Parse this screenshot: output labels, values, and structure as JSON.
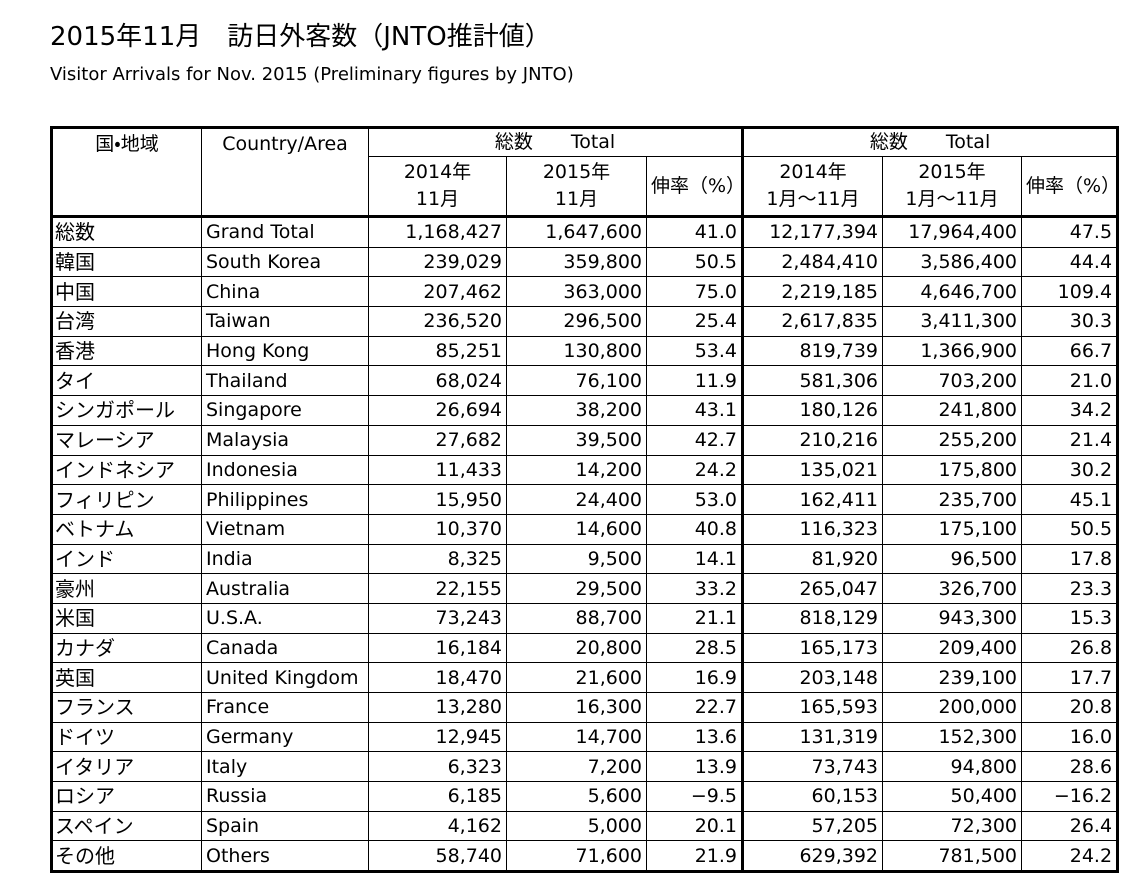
{
  "header": {
    "title": "2015年11月　訪日外客数（JNTO推計値）",
    "subtitle": "Visitor Arrivals for Nov. 2015 (Preliminary figures by JNTO)"
  },
  "table": {
    "header": {
      "region_jp": "国・地域",
      "region_en": "Country/Area",
      "groups": [
        "総数　　Total",
        "総数　　Total"
      ],
      "columns": [
        [
          "2014年",
          "11月"
        ],
        [
          "2015年",
          "11月"
        ],
        [
          "伸率（%）"
        ],
        [
          "2014年",
          "1月～11月"
        ],
        [
          "2015年",
          "1月～11月"
        ],
        [
          "伸率（%）"
        ]
      ]
    },
    "rows": [
      [
        "総数",
        "Grand Total",
        "1,168,427",
        "1,647,600",
        "41.0",
        "12,177,394",
        "17,964,400",
        "47.5"
      ],
      [
        "韓国",
        "South Korea",
        "239,029",
        "359,800",
        "50.5",
        "2,484,410",
        "3,586,400",
        "44.4"
      ],
      [
        "中国",
        "China",
        "207,462",
        "363,000",
        "75.0",
        "2,219,185",
        "4,646,700",
        "109.4"
      ],
      [
        "台湾",
        "Taiwan",
        "236,520",
        "296,500",
        "25.4",
        "2,617,835",
        "3,411,300",
        "30.3"
      ],
      [
        "香港",
        "Hong Kong",
        "85,251",
        "130,800",
        "53.4",
        "819,739",
        "1,366,900",
        "66.7"
      ],
      [
        "タイ",
        "Thailand",
        "68,024",
        "76,100",
        "11.9",
        "581,306",
        "703,200",
        "21.0"
      ],
      [
        "シンガポール",
        "Singapore",
        "26,694",
        "38,200",
        "43.1",
        "180,126",
        "241,800",
        "34.2"
      ],
      [
        "マレーシア",
        "Malaysia",
        "27,682",
        "39,500",
        "42.7",
        "210,216",
        "255,200",
        "21.4"
      ],
      [
        "インドネシア",
        "Indonesia",
        "11,433",
        "14,200",
        "24.2",
        "135,021",
        "175,800",
        "30.2"
      ],
      [
        "フィリピン",
        "Philippines",
        "15,950",
        "24,400",
        "53.0",
        "162,411",
        "235,700",
        "45.1"
      ],
      [
        "ベトナム",
        "Vietnam",
        "10,370",
        "14,600",
        "40.8",
        "116,323",
        "175,100",
        "50.5"
      ],
      [
        "インド",
        "India",
        "8,325",
        "9,500",
        "14.1",
        "81,920",
        "96,500",
        "17.8"
      ],
      [
        "豪州",
        "Australia",
        "22,155",
        "29,500",
        "33.2",
        "265,047",
        "326,700",
        "23.3"
      ],
      [
        "米国",
        "U.S.A.",
        "73,243",
        "88,700",
        "21.1",
        "818,129",
        "943,300",
        "15.3"
      ],
      [
        "カナダ",
        "Canada",
        "16,184",
        "20,800",
        "28.5",
        "165,173",
        "209,400",
        "26.8"
      ],
      [
        "英国",
        "United Kingdom",
        "18,470",
        "21,600",
        "16.9",
        "203,148",
        "239,100",
        "17.7"
      ],
      [
        "フランス",
        "France",
        "13,280",
        "16,300",
        "22.7",
        "165,593",
        "200,000",
        "20.8"
      ],
      [
        "ドイツ",
        "Germany",
        "12,945",
        "14,700",
        "13.6",
        "131,319",
        "152,300",
        "16.0"
      ],
      [
        "イタリア",
        "Italy",
        "6,323",
        "7,200",
        "13.9",
        "73,743",
        "94,800",
        "28.6"
      ],
      [
        "ロシア",
        "Russia",
        "6,185",
        "5,600",
        "−9.5",
        "60,153",
        "50,400",
        "−16.2"
      ],
      [
        "スペイン",
        "Spain",
        "4,162",
        "5,000",
        "20.1",
        "57,205",
        "72,300",
        "26.4"
      ],
      [
        "その他",
        "Others",
        "58,740",
        "71,600",
        "21.9",
        "629,392",
        "781,500",
        "24.2"
      ]
    ]
  }
}
